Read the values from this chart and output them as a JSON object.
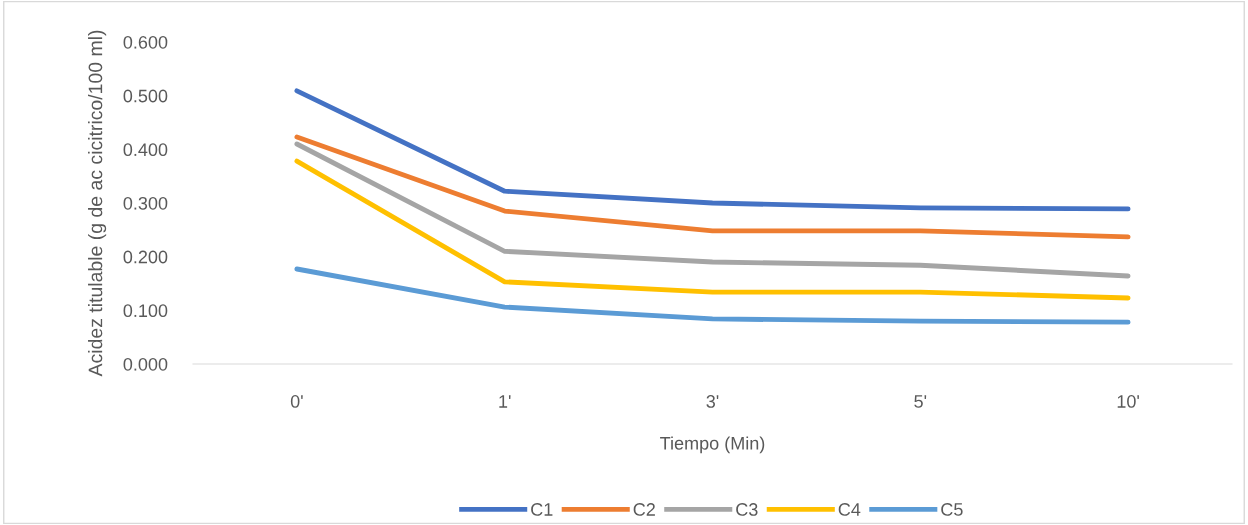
{
  "chart_data": {
    "type": "line",
    "xlabel": "Tiempo (Min)",
    "ylabel": "Acidez titulable (g de ac cicitrico/100 ml)",
    "categories": [
      "0'",
      "1'",
      "3'",
      "5'",
      "10'"
    ],
    "series": [
      {
        "name": "C1",
        "color": "#4472c4",
        "values": [
          0.509,
          0.322,
          0.3,
          0.291,
          0.289
        ]
      },
      {
        "name": "C2",
        "color": "#ed7d31",
        "values": [
          0.423,
          0.285,
          0.248,
          0.248,
          0.237
        ]
      },
      {
        "name": "C3",
        "color": "#a5a5a5",
        "values": [
          0.41,
          0.21,
          0.19,
          0.184,
          0.164
        ]
      },
      {
        "name": "C4",
        "color": "#ffc000",
        "values": [
          0.378,
          0.153,
          0.134,
          0.134,
          0.123
        ]
      },
      {
        "name": "C5",
        "color": "#5b9bd5",
        "values": [
          0.177,
          0.106,
          0.084,
          0.08,
          0.078
        ]
      }
    ],
    "ylim": [
      0,
      0.6
    ],
    "yticks": [
      {
        "value": 0,
        "label": "0.000"
      },
      {
        "value": 0.1,
        "label": "0.100"
      },
      {
        "value": 0.2,
        "label": "0.200"
      },
      {
        "value": 0.3,
        "label": "0.300"
      },
      {
        "value": 0.4,
        "label": "0.400"
      },
      {
        "value": 0.5,
        "label": "0.500"
      },
      {
        "value": 0.6,
        "label": "0.600"
      }
    ],
    "grid": false,
    "legend": "bottom",
    "marker": "none",
    "line_style": "solid"
  }
}
